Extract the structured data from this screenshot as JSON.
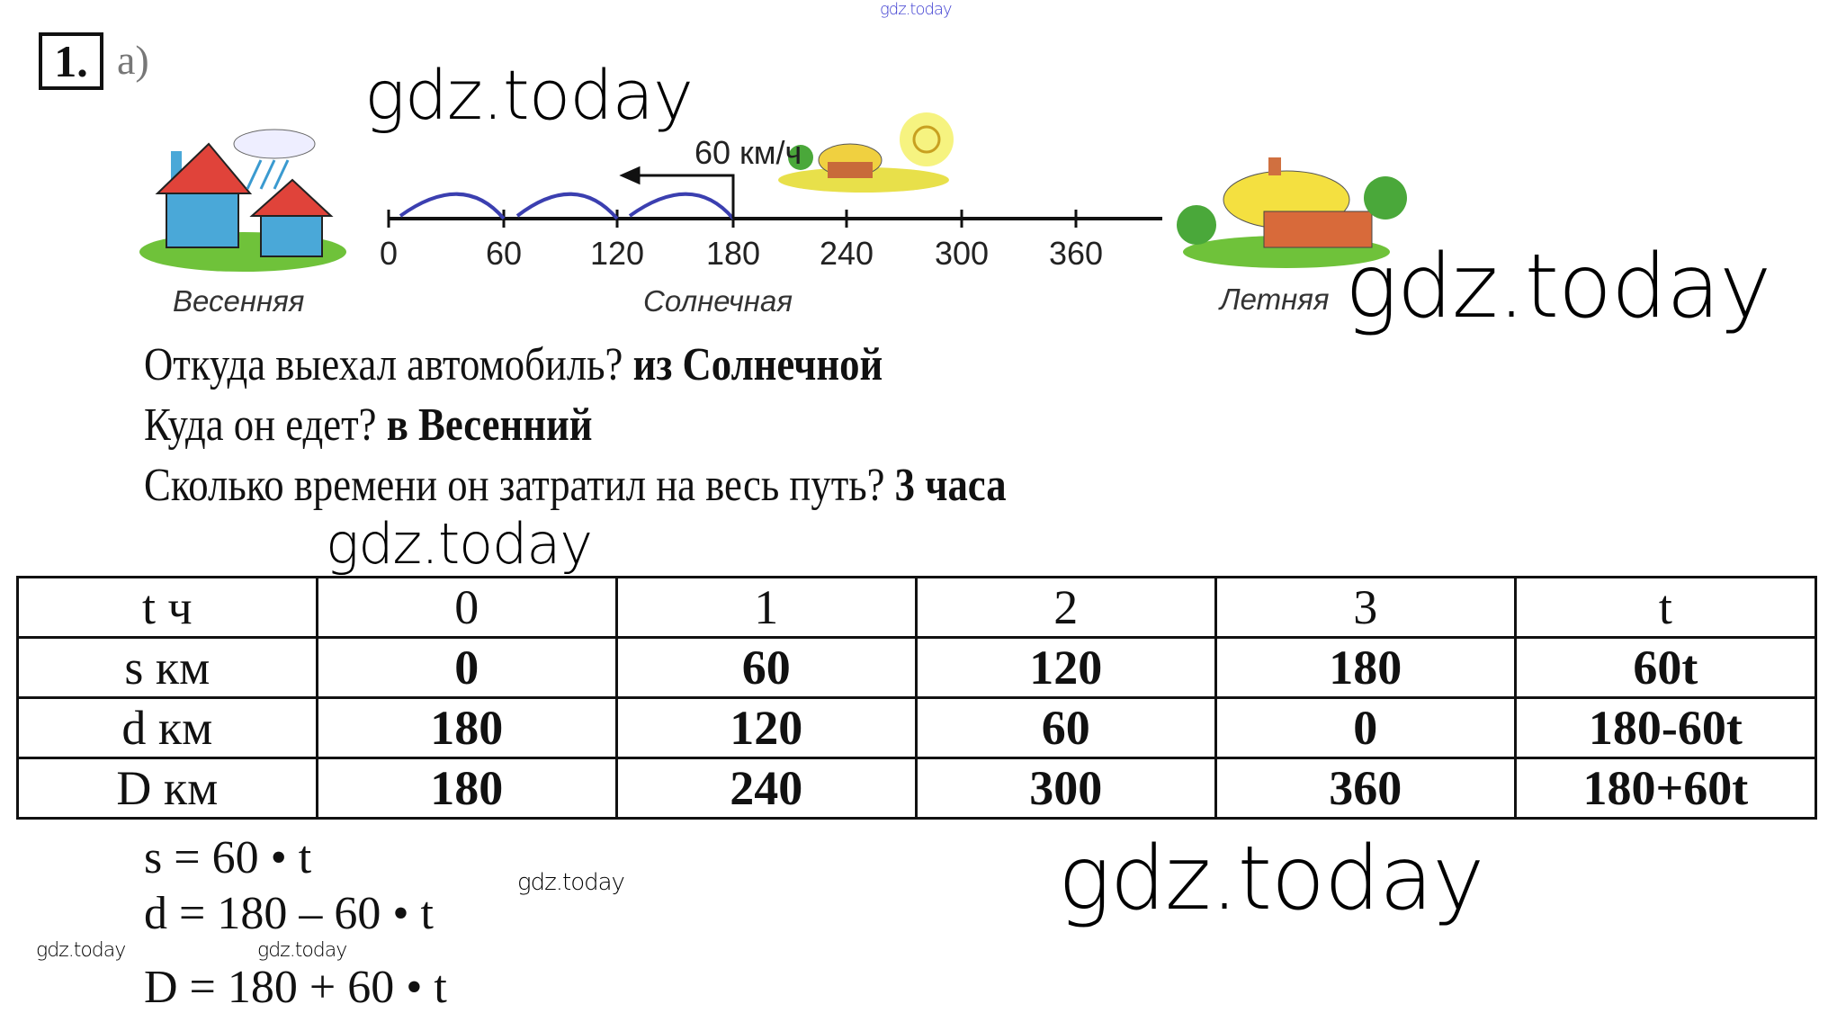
{
  "header": {
    "task_number": "1.",
    "subtask": "а)"
  },
  "watermarks": [
    "gdz.today",
    "gdz.today",
    "gdz.today",
    "gdz.today",
    "gdz.today",
    "gdz.today",
    "gdz.today",
    "gdz.today"
  ],
  "number_line": {
    "speed_label": "60 км/ч",
    "ticks": [
      "0",
      "60",
      "120",
      "180",
      "240",
      "300",
      "360"
    ],
    "towns": [
      "Весенняя",
      "Солнечная",
      "Летняя"
    ],
    "arc_color": "#3b3fb0"
  },
  "questions": [
    {
      "q": "Откуда выехал автомобиль?",
      "a": "из Солнечной"
    },
    {
      "q": "Куда он едет?",
      "a": "в Весенний"
    },
    {
      "q": "Сколько времени он затратил на весь путь?",
      "a": "3 часа"
    }
  ],
  "table": {
    "rows": [
      {
        "label": "t ч",
        "cells": [
          "0",
          "1",
          "2",
          "3",
          "t"
        ],
        "bold": false
      },
      {
        "label": "s км",
        "cells": [
          "0",
          "60",
          "120",
          "180",
          "60t"
        ],
        "bold": true
      },
      {
        "label": "d км",
        "cells": [
          "180",
          "120",
          "60",
          "0",
          "180-60t"
        ],
        "bold": true
      },
      {
        "label": "D км",
        "cells": [
          "180",
          "240",
          "300",
          "360",
          "180+60t"
        ],
        "bold": true
      }
    ]
  },
  "formulas": [
    "s = 60 • t",
    "d = 180 – 60 • t",
    "D = 180 + 60 • t"
  ]
}
